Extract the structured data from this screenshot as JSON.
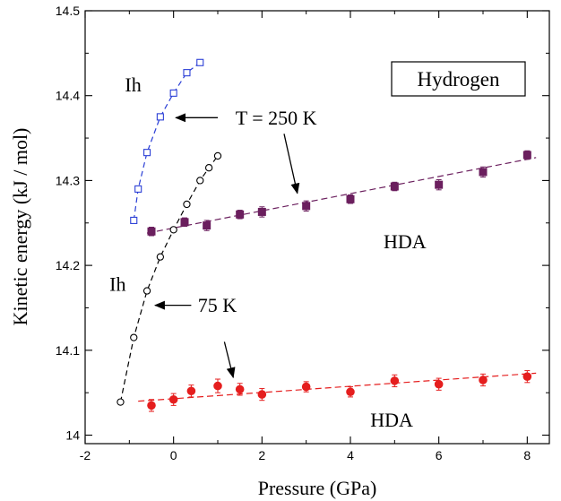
{
  "chart_data": {
    "type": "scatter",
    "xlabel": "Pressure  (GPa)",
    "ylabel": "Kinetic  energy  (kJ / mol)",
    "xlim": [
      -2,
      8.5
    ],
    "ylim": [
      13.99,
      14.5
    ],
    "x_ticks": [
      -2,
      0,
      2,
      4,
      6,
      8
    ],
    "y_ticks": [
      14,
      14.1,
      14.2,
      14.3,
      14.4,
      14.5
    ],
    "x_tick_labels": [
      "-2",
      "0",
      "2",
      "4",
      "6",
      "8"
    ],
    "y_tick_labels": [
      "14",
      "14.1",
      "14.2",
      "14.3",
      "14.4",
      "14.5"
    ],
    "grid": false,
    "legend_box": "Hydrogen",
    "series": [
      {
        "label": "Ih",
        "color": "#2b3fd6",
        "marker": "open-square",
        "line": "dashed",
        "x": [
          -0.9,
          -0.8,
          -0.6,
          -0.3,
          0.0,
          0.3,
          0.6
        ],
        "y": [
          14.253,
          14.29,
          14.333,
          14.375,
          14.403,
          14.427,
          14.439
        ]
      },
      {
        "color": "#000000",
        "marker": "open-circle",
        "line": "dashed",
        "x": [
          -1.2,
          -0.9,
          -0.6,
          -0.3,
          0.0,
          0.3,
          0.6,
          0.8,
          1.0
        ],
        "y": [
          14.039,
          14.115,
          14.17,
          14.21,
          14.242,
          14.272,
          14.3,
          14.315,
          14.329
        ]
      },
      {
        "label": "HDA",
        "color": "#6b1f5e",
        "marker": "filled-square",
        "errorbars": true,
        "x": [
          -0.5,
          0.25,
          0.75,
          1.5,
          2.0,
          3.0,
          4.0,
          5.0,
          6.0,
          7.0,
          8.0
        ],
        "y": [
          14.24,
          14.251,
          14.247,
          14.26,
          14.263,
          14.27,
          14.278,
          14.293,
          14.295,
          14.31,
          14.33
        ],
        "err": [
          0.005,
          0.005,
          0.006,
          0.005,
          0.006,
          0.006,
          0.005,
          0.005,
          0.006,
          0.006,
          0.005
        ]
      },
      {
        "label": "HDA",
        "color": "#e51e1e",
        "marker": "filled-circle",
        "errorbars": true,
        "x": [
          -0.5,
          0.0,
          0.4,
          1.0,
          1.5,
          2.0,
          3.0,
          4.0,
          5.0,
          6.0,
          7.0,
          8.0
        ],
        "y": [
          14.035,
          14.042,
          14.052,
          14.058,
          14.054,
          14.048,
          14.057,
          14.051,
          14.064,
          14.06,
          14.065,
          14.069
        ],
        "err": [
          0.007,
          0.007,
          0.007,
          0.008,
          0.007,
          0.007,
          0.006,
          0.006,
          0.007,
          0.007,
          0.007,
          0.007
        ]
      }
    ],
    "fit_lines": [
      {
        "x": [
          -0.6,
          8.2
        ],
        "y": [
          14.238,
          14.327
        ],
        "color": "#6b1f5e"
      },
      {
        "x": [
          -0.8,
          8.2
        ],
        "y": [
          14.04,
          14.073
        ],
        "color": "#e51e1e"
      }
    ],
    "annotations": [
      {
        "text": "Ih",
        "x": -1.1,
        "y": 14.405
      },
      {
        "text": "T = 250 K",
        "x": 1.4,
        "y": 14.366
      },
      {
        "text": "HDA",
        "x": 4.75,
        "y": 14.22
      },
      {
        "text": "Ih",
        "x": -1.45,
        "y": 14.17
      },
      {
        "text": "75 K",
        "x": 0.55,
        "y": 14.145
      },
      {
        "text": "HDA",
        "x": 4.45,
        "y": 14.01
      }
    ],
    "arrows": [
      {
        "from": [
          1.0,
          14.374
        ],
        "to": [
          0.05,
          14.374
        ]
      },
      {
        "from": [
          2.5,
          14.355
        ],
        "to": [
          2.8,
          14.285
        ]
      },
      {
        "from": [
          0.4,
          14.153
        ],
        "to": [
          -0.42,
          14.153
        ]
      },
      {
        "from": [
          1.15,
          14.11
        ],
        "to": [
          1.35,
          14.068
        ]
      }
    ]
  }
}
